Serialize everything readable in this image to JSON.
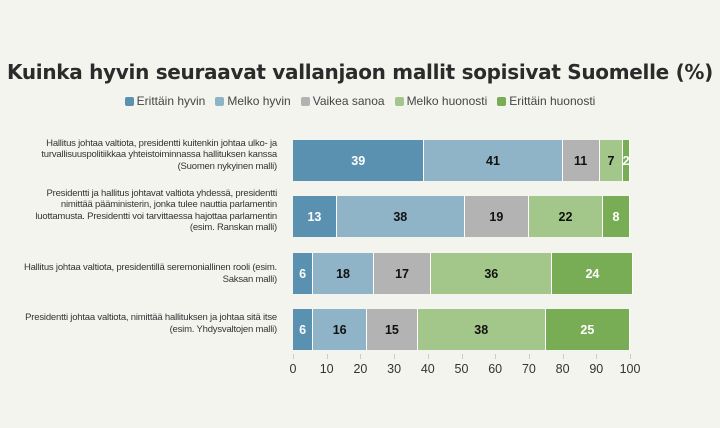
{
  "chart_data": {
    "type": "bar",
    "orientation": "horizontal-stacked",
    "title": "Kuinka hyvin seuraavat vallanjaon mallit sopisivat Suomelle (%)",
    "xlim": [
      0,
      100
    ],
    "xticks": [
      0,
      10,
      20,
      30,
      40,
      50,
      60,
      70,
      80,
      90,
      100
    ],
    "legend_placement": "top",
    "categories": [
      "Hallitus johtaa valtiota, presidentti kuitenkin johtaa ulko- ja turvallisuuspolitiikkaa yhteistoiminnassa hallituksen kanssa (Suomen nykyinen malli)",
      "Presidentti ja hallitus johtavat valtiota yhdessä, presidentti nimittää pääministerin, jonka tulee nauttia parlamentin luottamusta. Presidentti voi tarvittaessa hajottaa parlamentin (esim. Ranskan malli)",
      "Hallitus johtaa valtiota, presidentillä seremoniallinen rooli (esim. Saksan malli)",
      "Presidentti johtaa valtiota, nimittää hallituksen ja johtaa sitä itse (esim. Yhdysvaltojen malli)"
    ],
    "series": [
      {
        "name": "Erittäin hyvin",
        "color": "#5a90b0",
        "text": "#ffffff",
        "values": [
          39,
          13,
          6,
          6
        ]
      },
      {
        "name": "Melko hyvin",
        "color": "#8fb3c7",
        "text": "#111111",
        "values": [
          41,
          38,
          18,
          16
        ]
      },
      {
        "name": "Vaikea sanoa",
        "color": "#b3b3b3",
        "text": "#111111",
        "values": [
          11,
          19,
          17,
          15
        ]
      },
      {
        "name": "Melko huonosti",
        "color": "#a3c78a",
        "text": "#111111",
        "values": [
          7,
          22,
          36,
          38
        ]
      },
      {
        "name": "Erittäin huonosti",
        "color": "#79ad55",
        "text": "#ffffff",
        "values": [
          2,
          8,
          24,
          25
        ]
      }
    ]
  }
}
